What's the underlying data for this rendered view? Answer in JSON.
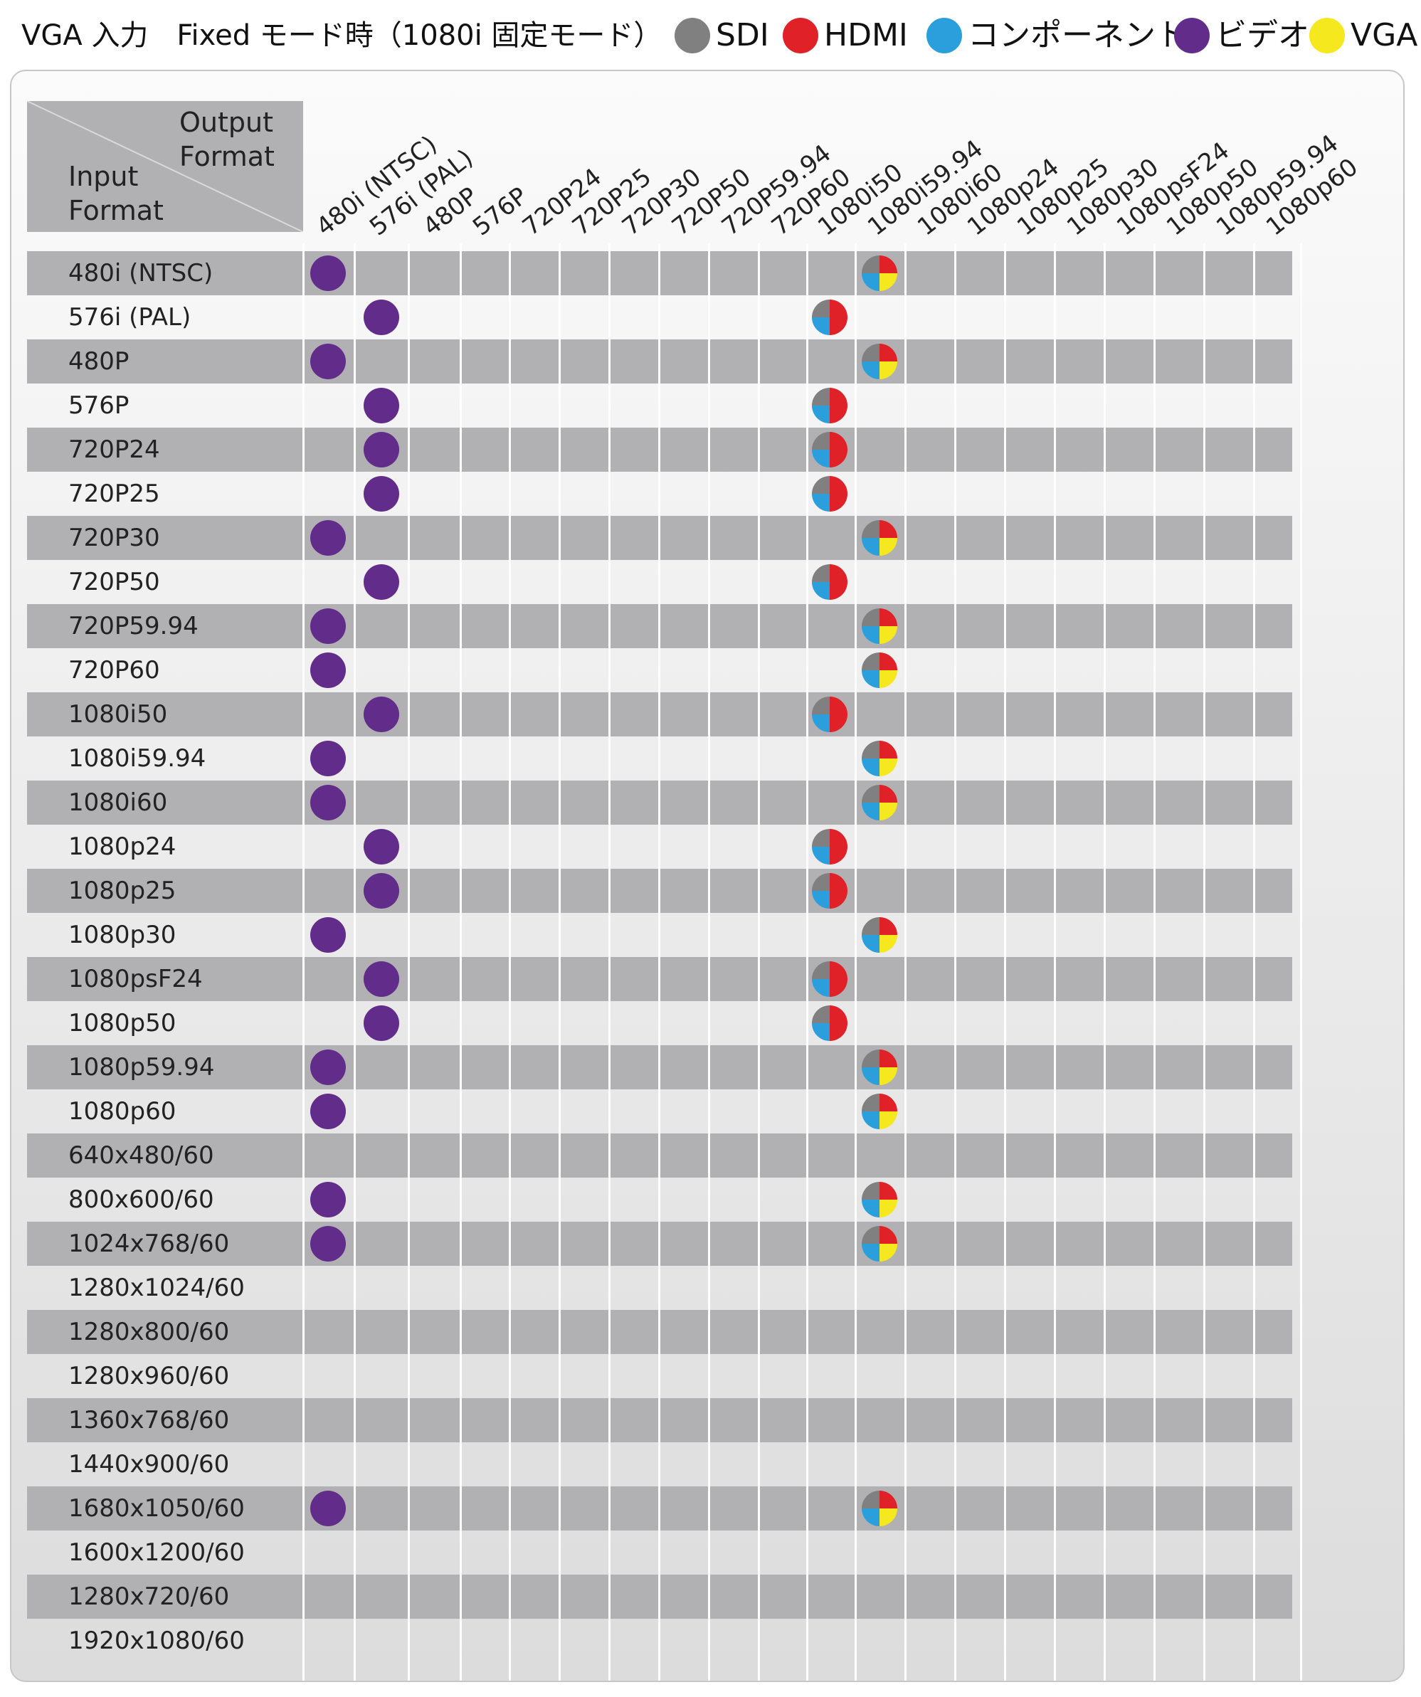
{
  "title": "VGA 入力　Fixed モード時（1080i 固定モード）",
  "legend": [
    {
      "label": "SDI",
      "color": "#808080",
      "icon": "gray-dot-icon"
    },
    {
      "label": "HDMI",
      "color": "#e02128",
      "icon": "red-dot-icon"
    },
    {
      "label": "コンポーネント",
      "color": "#2a9fdb",
      "icon": "blue-dot-icon"
    },
    {
      "label": "ビデオ",
      "color": "#622c8a",
      "icon": "purple-dot-icon"
    },
    {
      "label": "VGA",
      "color": "#f5e81e",
      "icon": "yellow-dot-icon"
    }
  ],
  "corner": {
    "output_label": "Output Format",
    "input_label": "Input Format"
  },
  "output_formats": [
    "480i (NTSC)",
    "576i (PAL)",
    "480P",
    "576P",
    "720P24",
    "720P25",
    "720P30",
    "720P50",
    "720P59.94",
    "720P60",
    "1080i50",
    "1080i59.94",
    "1080i60",
    "1080p24",
    "1080p25",
    "1080p30",
    "1080psF24",
    "1080p50",
    "1080p59.94",
    "1080p60"
  ],
  "input_formats": [
    "480i (NTSC)",
    "576i (PAL)",
    "480P",
    "576P",
    "720P24",
    "720P25",
    "720P30",
    "720P50",
    "720P59.94",
    "720P60",
    "1080i50",
    "1080i59.94",
    "1080i60",
    "1080p24",
    "1080p25",
    "1080p30",
    "1080psF24",
    "1080p50",
    "1080p59.94",
    "1080p60",
    "640x480/60",
    "800x600/60",
    "1024x768/60",
    "1280x1024/60",
    "1280x800/60",
    "1280x960/60",
    "1360x768/60",
    "1440x900/60",
    "1680x1050/60",
    "1600x1200/60",
    "1280x720/60",
    "1920x1080/60"
  ],
  "marker_types": {
    "video": {
      "icon": "video-purple-dot-icon",
      "colors": [
        "#622c8a"
      ]
    },
    "sdi_hdmi_comp": {
      "icon": "sdi-hdmi-component-dot-icon",
      "colors": [
        "#808080",
        "#e02128",
        "#2a9fdb"
      ]
    },
    "sdi_hdmi_comp_vga": {
      "icon": "sdi-hdmi-component-vga-dot-icon",
      "colors": [
        "#808080",
        "#e02128",
        "#2a9fdb",
        "#f5e81e"
      ]
    }
  },
  "marks": [
    {
      "row": "480i (NTSC)",
      "col": "480i (NTSC)",
      "type": "video"
    },
    {
      "row": "480i (NTSC)",
      "col": "1080i59.94",
      "type": "sdi_hdmi_comp_vga"
    },
    {
      "row": "576i (PAL)",
      "col": "576i (PAL)",
      "type": "video"
    },
    {
      "row": "576i (PAL)",
      "col": "1080i50",
      "type": "sdi_hdmi_comp"
    },
    {
      "row": "480P",
      "col": "480i (NTSC)",
      "type": "video"
    },
    {
      "row": "480P",
      "col": "1080i59.94",
      "type": "sdi_hdmi_comp_vga"
    },
    {
      "row": "576P",
      "col": "576i (PAL)",
      "type": "video"
    },
    {
      "row": "576P",
      "col": "1080i50",
      "type": "sdi_hdmi_comp"
    },
    {
      "row": "720P24",
      "col": "576i (PAL)",
      "type": "video"
    },
    {
      "row": "720P24",
      "col": "1080i50",
      "type": "sdi_hdmi_comp"
    },
    {
      "row": "720P25",
      "col": "576i (PAL)",
      "type": "video"
    },
    {
      "row": "720P25",
      "col": "1080i50",
      "type": "sdi_hdmi_comp"
    },
    {
      "row": "720P30",
      "col": "480i (NTSC)",
      "type": "video"
    },
    {
      "row": "720P30",
      "col": "1080i59.94",
      "type": "sdi_hdmi_comp_vga"
    },
    {
      "row": "720P50",
      "col": "576i (PAL)",
      "type": "video"
    },
    {
      "row": "720P50",
      "col": "1080i50",
      "type": "sdi_hdmi_comp"
    },
    {
      "row": "720P59.94",
      "col": "480i (NTSC)",
      "type": "video"
    },
    {
      "row": "720P59.94",
      "col": "1080i59.94",
      "type": "sdi_hdmi_comp_vga"
    },
    {
      "row": "720P60",
      "col": "480i (NTSC)",
      "type": "video"
    },
    {
      "row": "720P60",
      "col": "1080i59.94",
      "type": "sdi_hdmi_comp_vga"
    },
    {
      "row": "1080i50",
      "col": "576i (PAL)",
      "type": "video"
    },
    {
      "row": "1080i50",
      "col": "1080i50",
      "type": "sdi_hdmi_comp"
    },
    {
      "row": "1080i59.94",
      "col": "480i (NTSC)",
      "type": "video"
    },
    {
      "row": "1080i59.94",
      "col": "1080i59.94",
      "type": "sdi_hdmi_comp_vga"
    },
    {
      "row": "1080i60",
      "col": "480i (NTSC)",
      "type": "video"
    },
    {
      "row": "1080i60",
      "col": "1080i59.94",
      "type": "sdi_hdmi_comp_vga"
    },
    {
      "row": "1080p24",
      "col": "576i (PAL)",
      "type": "video"
    },
    {
      "row": "1080p24",
      "col": "1080i50",
      "type": "sdi_hdmi_comp"
    },
    {
      "row": "1080p25",
      "col": "576i (PAL)",
      "type": "video"
    },
    {
      "row": "1080p25",
      "col": "1080i50",
      "type": "sdi_hdmi_comp"
    },
    {
      "row": "1080p30",
      "col": "480i (NTSC)",
      "type": "video"
    },
    {
      "row": "1080p30",
      "col": "1080i59.94",
      "type": "sdi_hdmi_comp_vga"
    },
    {
      "row": "1080psF24",
      "col": "576i (PAL)",
      "type": "video"
    },
    {
      "row": "1080psF24",
      "col": "1080i50",
      "type": "sdi_hdmi_comp"
    },
    {
      "row": "1080p50",
      "col": "576i (PAL)",
      "type": "video"
    },
    {
      "row": "1080p50",
      "col": "1080i50",
      "type": "sdi_hdmi_comp"
    },
    {
      "row": "1080p59.94",
      "col": "480i (NTSC)",
      "type": "video"
    },
    {
      "row": "1080p59.94",
      "col": "1080i59.94",
      "type": "sdi_hdmi_comp_vga"
    },
    {
      "row": "1080p60",
      "col": "480i (NTSC)",
      "type": "video"
    },
    {
      "row": "1080p60",
      "col": "1080i59.94",
      "type": "sdi_hdmi_comp_vga"
    },
    {
      "row": "800x600/60",
      "col": "480i (NTSC)",
      "type": "video"
    },
    {
      "row": "800x600/60",
      "col": "1080i59.94",
      "type": "sdi_hdmi_comp_vga"
    },
    {
      "row": "1024x768/60",
      "col": "480i (NTSC)",
      "type": "video"
    },
    {
      "row": "1024x768/60",
      "col": "1080i59.94",
      "type": "sdi_hdmi_comp_vga"
    },
    {
      "row": "1680x1050/60",
      "col": "480i (NTSC)",
      "type": "video"
    },
    {
      "row": "1680x1050/60",
      "col": "1080i59.94",
      "type": "sdi_hdmi_comp_vga"
    }
  ]
}
